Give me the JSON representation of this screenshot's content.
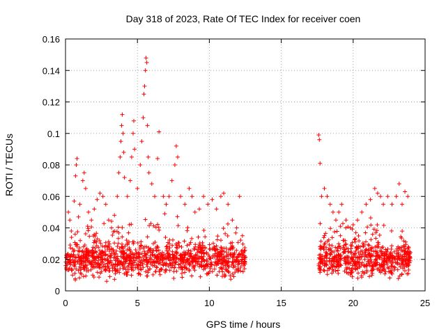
{
  "chart_data": {
    "type": "scatter",
    "title": "Day 318 of 2023, Rate Of TEC Index for receiver coen",
    "xlabel": "GPS time / hours",
    "ylabel": "ROTI / TECUs",
    "xlim": [
      0,
      25
    ],
    "ylim": [
      0,
      0.16
    ],
    "xticks": [
      0,
      5,
      10,
      15,
      20,
      25
    ],
    "yticks": [
      0,
      0.02,
      0.04,
      0.06,
      0.08,
      0.1,
      0.12,
      0.14,
      0.16
    ],
    "xtick_labels": [
      "0",
      "5",
      "10",
      "15",
      "20",
      "25"
    ],
    "ytick_labels": [
      "0",
      "0.02",
      "0.04",
      "0.06",
      "0.08",
      "0.1",
      "0.12",
      "0.14",
      "0.16"
    ],
    "grid": true,
    "marker": "+",
    "color": "#ff0000",
    "series": [
      {
        "name": "ROTI",
        "points": [
          [
            0.2,
            0.05
          ],
          [
            0.3,
            0.045
          ],
          [
            0.4,
            0.038
          ],
          [
            0.6,
            0.057
          ],
          [
            0.7,
            0.073
          ],
          [
            0.75,
            0.08
          ],
          [
            0.8,
            0.084
          ],
          [
            0.9,
            0.047
          ],
          [
            1.0,
            0.055
          ],
          [
            1.2,
            0.07
          ],
          [
            1.3,
            0.075
          ],
          [
            1.4,
            0.065
          ],
          [
            1.6,
            0.05
          ],
          [
            1.8,
            0.045
          ],
          [
            2.0,
            0.052
          ],
          [
            2.2,
            0.058
          ],
          [
            2.4,
            0.062
          ],
          [
            2.6,
            0.06
          ],
          [
            2.8,
            0.055
          ],
          [
            3.0,
            0.045
          ],
          [
            3.2,
            0.04
          ],
          [
            3.4,
            0.048
          ],
          [
            3.6,
            0.06
          ],
          [
            3.7,
            0.075
          ],
          [
            3.8,
            0.085
          ],
          [
            3.85,
            0.095
          ],
          [
            3.9,
            0.105
          ],
          [
            3.95,
            0.112
          ],
          [
            4.0,
            0.1
          ],
          [
            4.05,
            0.088
          ],
          [
            4.1,
            0.072
          ],
          [
            4.3,
            0.06
          ],
          [
            4.5,
            0.07
          ],
          [
            4.6,
            0.085
          ],
          [
            4.7,
            0.1
          ],
          [
            4.75,
            0.108
          ],
          [
            4.8,
            0.09
          ],
          [
            5.0,
            0.065
          ],
          [
            5.2,
            0.08
          ],
          [
            5.3,
            0.095
          ],
          [
            5.4,
            0.11
          ],
          [
            5.45,
            0.125
          ],
          [
            5.5,
            0.13
          ],
          [
            5.55,
            0.14
          ],
          [
            5.6,
            0.148
          ],
          [
            5.65,
            0.145
          ],
          [
            5.7,
            0.105
          ],
          [
            5.75,
            0.085
          ],
          [
            5.8,
            0.075
          ],
          [
            6.0,
            0.068
          ],
          [
            6.2,
            0.06
          ],
          [
            6.4,
            0.084
          ],
          [
            6.5,
            0.101
          ],
          [
            6.8,
            0.06
          ],
          [
            7.0,
            0.055
          ],
          [
            7.2,
            0.06
          ],
          [
            7.4,
            0.07
          ],
          [
            7.6,
            0.08
          ],
          [
            7.7,
            0.092
          ],
          [
            7.8,
            0.085
          ],
          [
            8.0,
            0.06
          ],
          [
            8.3,
            0.055
          ],
          [
            8.6,
            0.065
          ],
          [
            8.8,
            0.06
          ],
          [
            9.0,
            0.05
          ],
          [
            9.3,
            0.052
          ],
          [
            9.6,
            0.06
          ],
          [
            9.9,
            0.055
          ],
          [
            10.2,
            0.058
          ],
          [
            10.5,
            0.052
          ],
          [
            10.8,
            0.06
          ],
          [
            11.0,
            0.062
          ],
          [
            11.3,
            0.055
          ],
          [
            11.6,
            0.045
          ],
          [
            11.9,
            0.04
          ],
          [
            12.1,
            0.06
          ],
          [
            12.3,
            0.035
          ],
          [
            17.6,
            0.099
          ],
          [
            17.65,
            0.096
          ],
          [
            17.7,
            0.081
          ],
          [
            17.8,
            0.06
          ],
          [
            18.0,
            0.065
          ],
          [
            18.2,
            0.06
          ],
          [
            18.4,
            0.055
          ],
          [
            18.6,
            0.05
          ],
          [
            18.8,
            0.045
          ],
          [
            19.0,
            0.05
          ],
          [
            19.2,
            0.055
          ],
          [
            19.5,
            0.045
          ],
          [
            19.8,
            0.04
          ],
          [
            20.0,
            0.042
          ],
          [
            20.3,
            0.045
          ],
          [
            20.6,
            0.05
          ],
          [
            20.9,
            0.055
          ],
          [
            21.2,
            0.058
          ],
          [
            21.5,
            0.065
          ],
          [
            21.7,
            0.062
          ],
          [
            21.9,
            0.06
          ],
          [
            22.1,
            0.055
          ],
          [
            22.4,
            0.06
          ],
          [
            22.7,
            0.055
          ],
          [
            23.0,
            0.06
          ],
          [
            23.2,
            0.068
          ],
          [
            23.4,
            0.055
          ],
          [
            23.6,
            0.063
          ],
          [
            23.8,
            0.06
          ]
        ],
        "bands": [
          {
            "x_range": [
              0.0,
              12.5
            ],
            "base_range": [
              0.005,
              0.035
            ],
            "density": 1100
          },
          {
            "x_range": [
              17.6,
              24.0
            ],
            "base_range": [
              0.005,
              0.035
            ],
            "density": 600
          }
        ]
      }
    ]
  }
}
